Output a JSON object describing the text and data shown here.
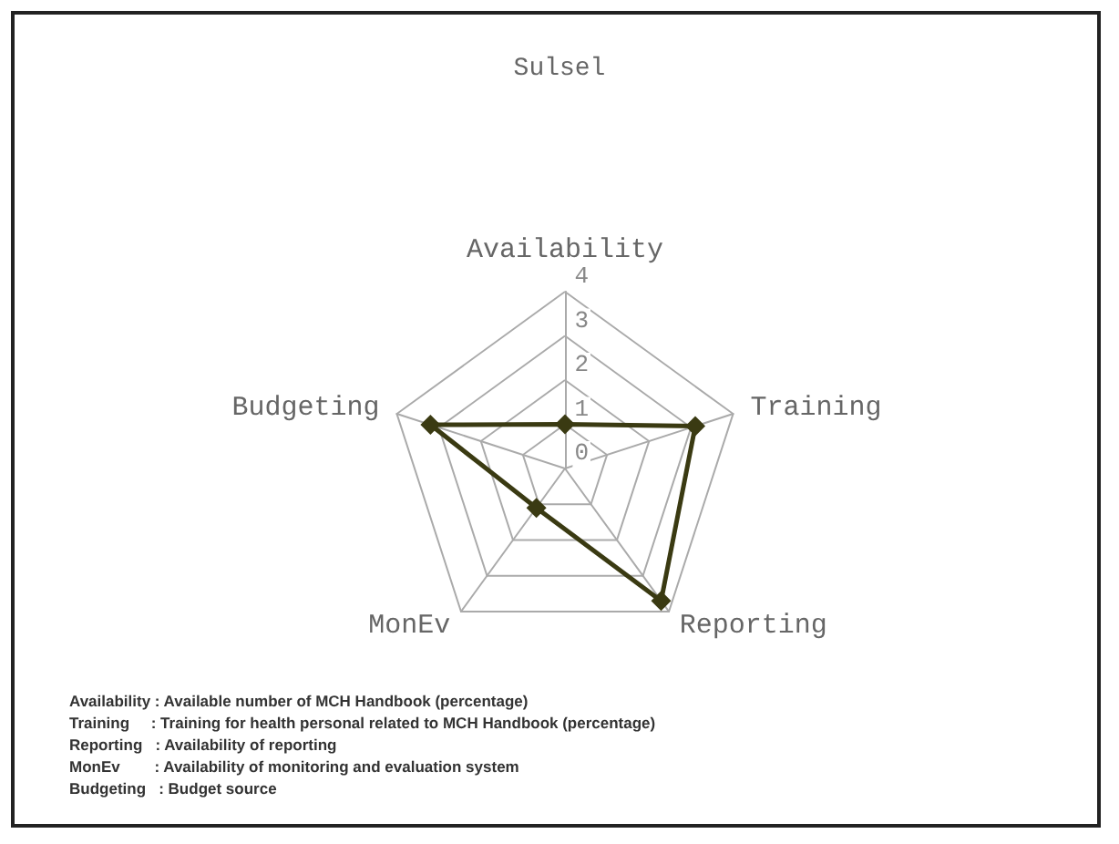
{
  "chart_data": {
    "type": "radar",
    "title": "Sulsel",
    "categories": [
      "Availability",
      "Training",
      "Reporting",
      "MonEv",
      "Budgeting"
    ],
    "series": [
      {
        "color": "#3a3a12",
        "values": [
          1,
          3.1,
          3.7,
          1.1,
          3.2
        ]
      }
    ],
    "ylim": [
      0,
      4
    ],
    "yticks": [
      0,
      1,
      2,
      3,
      4
    ],
    "marker": "diamond",
    "annotations": [
      "Availability : Available number of MCH Handbook (percentage)",
      "Training     : Training for health personal related to MCH Handbook (percentage)",
      "Reporting   : Availability of reporting",
      "MonEv        : Availability of monitoring and evaluation system",
      "Budgeting   : Budget source"
    ]
  }
}
